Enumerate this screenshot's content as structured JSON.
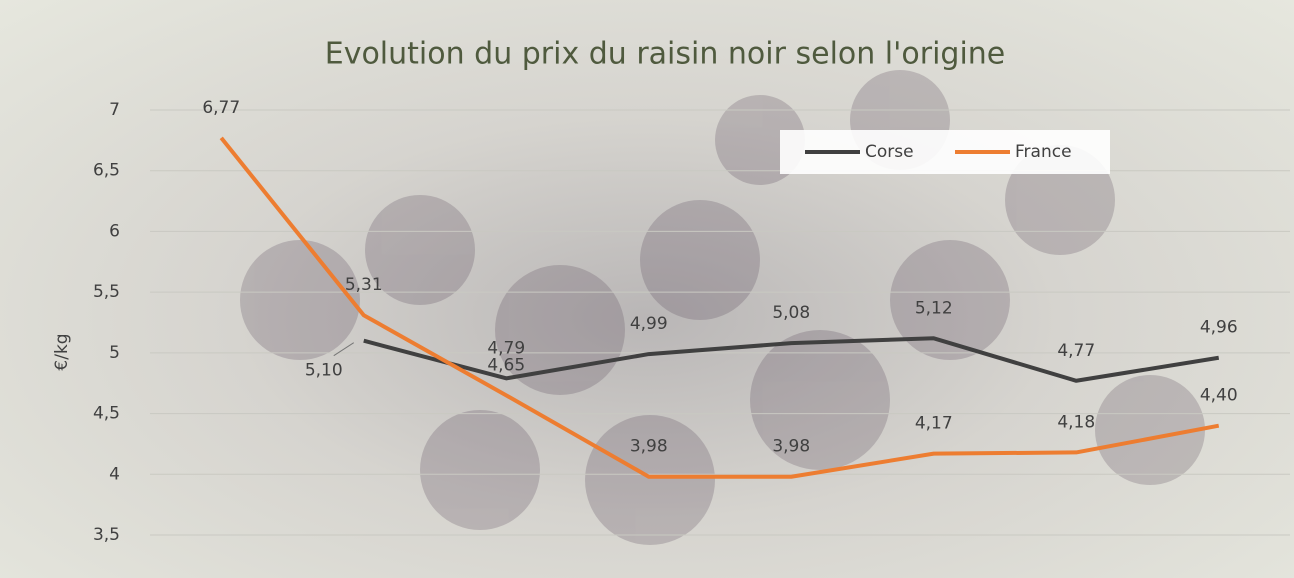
{
  "chart_data": {
    "type": "line",
    "title": "Evolution du prix du raisin noir selon l'origine",
    "y_label": "€/kg",
    "categories": [
      null,
      null,
      null,
      null,
      null,
      null,
      null,
      null
    ],
    "series": [
      {
        "name": "Corse",
        "color": "#404040",
        "values": [
          null,
          5.1,
          4.79,
          4.99,
          5.08,
          5.12,
          4.77,
          4.96
        ],
        "value_labels": [
          null,
          "5,10",
          "4,79",
          "4,99",
          "5,08",
          "5,12",
          "4,77",
          "4,96"
        ]
      },
      {
        "name": "France",
        "color": "#ed7d31",
        "values": [
          6.77,
          5.31,
          4.65,
          3.98,
          3.98,
          4.17,
          4.18,
          4.4
        ],
        "value_labels": [
          "6,77",
          "5,31",
          "4,65",
          "3,98",
          "3,98",
          "4,17",
          "4,18",
          "4,40"
        ]
      }
    ],
    "ylim": [
      3.5,
      7
    ],
    "yticks": [
      {
        "value": 3.5,
        "label": "3,5"
      },
      4,
      {
        "value": 4.5,
        "label": "4,5"
      },
      5,
      {
        "value": 5.5,
        "label": "5,5"
      },
      6,
      {
        "value": 6.5,
        "label": "6,5"
      },
      7
    ],
    "grid": true,
    "legend": "top-right"
  }
}
